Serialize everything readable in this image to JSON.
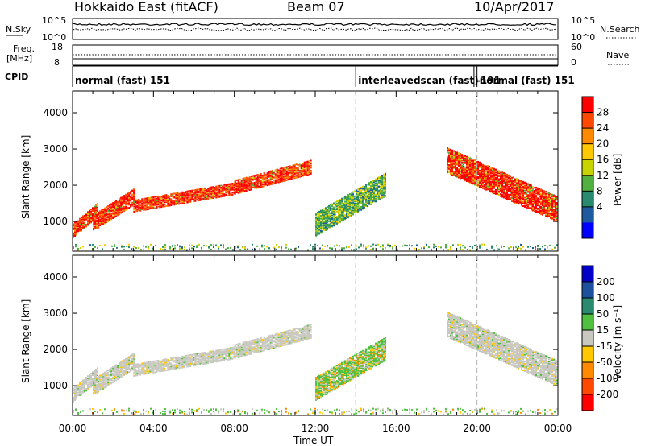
{
  "header": {
    "station": "Hokkaido East (fitACF)",
    "beam": "Beam 07",
    "date": "10/Apr/2017"
  },
  "top_panels": {
    "nsky": {
      "label": "N.Sky",
      "right_label": "N.Search",
      "left_ticks": [
        "10^5",
        "10^0"
      ],
      "right_ticks": [
        "10^5",
        "10^0"
      ]
    },
    "freq": {
      "label_line1": "Freq.",
      "label_line2": "[MHz]",
      "right_label": "Nave",
      "left_ticks": [
        "18",
        "8"
      ],
      "right_ticks": [
        "60",
        "0"
      ]
    },
    "cpid": {
      "label": "CPID",
      "segments": [
        {
          "text": "normal (fast) 151",
          "start_hour": 0.0
        },
        {
          "text": "interleavedscan (fast)",
          "start_hour": 14.0
        },
        {
          "text": "-191",
          "start_hour": 19.85
        },
        {
          "text": "normal (fast) 151",
          "start_hour": 20.0
        }
      ]
    }
  },
  "chart_data": [
    {
      "type": "heatmap",
      "title": "",
      "parameter": "Power",
      "ylabel": "Slant Range [km]",
      "xlabel": "",
      "xlim": [
        0,
        24
      ],
      "ylim": [
        180,
        4600
      ],
      "y_ticks": [
        "1000",
        "2000",
        "3000",
        "4000"
      ],
      "colorbar": {
        "label": "Power [dB]",
        "ticks": [
          "28",
          "24",
          "20",
          "16",
          "12",
          "8",
          "4"
        ],
        "colors": [
          "#ff0000",
          "#ff4800",
          "#ff8a00",
          "#ffc800",
          "#c8d400",
          "#50b040",
          "#2a8a70",
          "#1e5aa0",
          "#0000ff"
        ]
      },
      "echo_regions": [
        {
          "hours": [
            0.0,
            1.2
          ],
          "range_km": [
            700,
            1400
          ],
          "level": "high"
        },
        {
          "hours": [
            1.0,
            3.0
          ],
          "range_km": [
            900,
            1800
          ],
          "level": "high"
        },
        {
          "hours": [
            3.0,
            8.0
          ],
          "range_km": [
            1400,
            2000
          ],
          "level": "high"
        },
        {
          "hours": [
            8.0,
            11.8
          ],
          "range_km": [
            1900,
            2600
          ],
          "level": "high"
        },
        {
          "hours": [
            12.0,
            15.5
          ],
          "range_km": [
            800,
            2200
          ],
          "level": "medium"
        },
        {
          "hours": [
            18.5,
            24.0
          ],
          "range_km": [
            1200,
            2800
          ],
          "level": "high"
        }
      ]
    },
    {
      "type": "heatmap",
      "title": "",
      "parameter": "Velocity",
      "ylabel": "Slant Range [km]",
      "xlabel": "Time UT",
      "xlim": [
        0,
        24
      ],
      "ylim": [
        180,
        4600
      ],
      "x_ticks": [
        "00:00",
        "04:00",
        "08:00",
        "12:00",
        "16:00",
        "20:00",
        "00:00"
      ],
      "y_ticks": [
        "1000",
        "2000",
        "3000",
        "4000"
      ],
      "colorbar": {
        "label": "Velocity [m s⁻¹]",
        "ticks": [
          "200",
          "100",
          "50",
          "15",
          "-15",
          "-50",
          "-100",
          "-200"
        ],
        "colors": [
          "#0000c8",
          "#1e50a0",
          "#2a8a70",
          "#50c040",
          "#c8c8c0",
          "#ffc800",
          "#ff8a00",
          "#ff4800",
          "#ff0000"
        ]
      }
    }
  ]
}
